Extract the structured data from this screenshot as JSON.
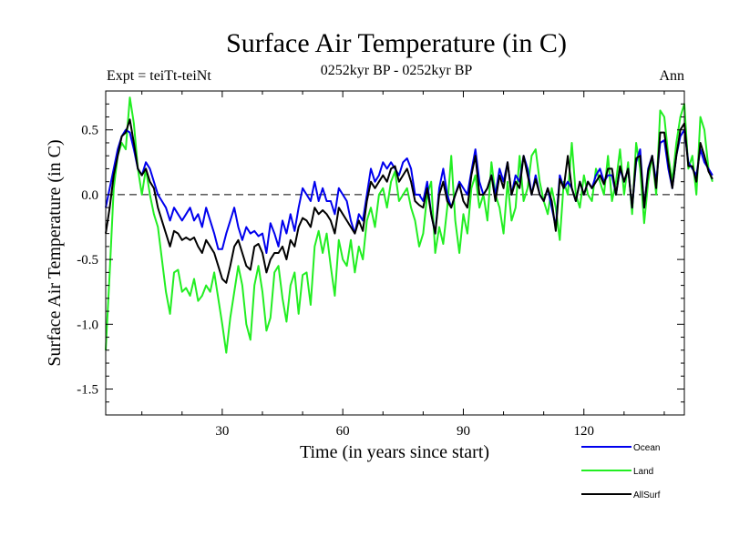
{
  "chart_data": {
    "type": "line",
    "title": "Surface Air Temperature (in C)",
    "expt_label": "Expt = teiTt-teiNt",
    "period_label": "0252kyr BP - 0252kyr BP",
    "season_label": "Ann",
    "xlabel": "Time (in years since start)",
    "ylabel": "Surface Air Temperature (in C)",
    "xlim": [
      1,
      145
    ],
    "ylim": [
      -1.7,
      0.8
    ],
    "x_ticks": [
      30,
      60,
      90,
      120
    ],
    "x_tick_labels": [
      "30",
      "60",
      "90",
      "120"
    ],
    "y_ticks": [
      -1.5,
      -1.0,
      -0.5,
      0.0,
      0.5
    ],
    "y_tick_labels": [
      "-1.5",
      "-1.0",
      "-0.5",
      "0.0",
      "0.5"
    ],
    "zero_line": true,
    "series": [
      {
        "name": "Land",
        "color": "#22ee22",
        "values": [
          -1.2,
          -0.6,
          0.05,
          0.3,
          0.4,
          0.35,
          0.75,
          0.55,
          0.2,
          0.0,
          0.2,
          0.0,
          -0.15,
          -0.25,
          -0.5,
          -0.75,
          -0.92,
          -0.6,
          -0.58,
          -0.75,
          -0.72,
          -0.78,
          -0.65,
          -0.82,
          -0.78,
          -0.7,
          -0.75,
          -0.6,
          -0.8,
          -1.0,
          -1.22,
          -0.95,
          -0.75,
          -0.55,
          -0.7,
          -1.0,
          -1.12,
          -0.7,
          -0.55,
          -0.75,
          -1.05,
          -0.95,
          -0.6,
          -0.55,
          -0.8,
          -0.98,
          -0.7,
          -0.6,
          -0.92,
          -0.62,
          -0.6,
          -0.85,
          -0.4,
          -0.28,
          -0.45,
          -0.3,
          -0.55,
          -0.78,
          -0.35,
          -0.5,
          -0.55,
          -0.35,
          -0.6,
          -0.4,
          -0.5,
          -0.2,
          -0.1,
          -0.25,
          0.0,
          0.05,
          -0.1,
          0.1,
          0.18,
          -0.05,
          0.0,
          0.05,
          -0.1,
          -0.2,
          -0.4,
          -0.3,
          0.0,
          0.1,
          -0.45,
          -0.25,
          -0.38,
          -0.1,
          0.3,
          -0.2,
          -0.45,
          -0.15,
          -0.3,
          0.05,
          0.15,
          -0.1,
          0.0,
          -0.2,
          0.25,
          0.0,
          -0.1,
          -0.3,
          0.1,
          -0.2,
          -0.1,
          0.3,
          -0.05,
          0.05,
          0.3,
          0.35,
          0.1,
          -0.05,
          -0.15,
          0.05,
          -0.1,
          -0.35,
          0.1,
          0.0,
          0.4,
          0.0,
          -0.1,
          0.15,
          0.0,
          -0.05,
          0.2,
          0.1,
          0.0,
          0.3,
          -0.05,
          0.1,
          0.35,
          0.0,
          0.25,
          -0.15,
          0.4,
          0.2,
          -0.22,
          0.1,
          0.3,
          0.0,
          0.65,
          0.6,
          0.3,
          0.1,
          0.4,
          0.6,
          0.7,
          0.2,
          0.3,
          0.0,
          0.6,
          0.5,
          0.2,
          0.1
        ]
      },
      {
        "name": "Ocean",
        "color": "#0000ee",
        "values": [
          -0.1,
          0.05,
          0.2,
          0.35,
          0.45,
          0.5,
          0.48,
          0.35,
          0.2,
          0.15,
          0.25,
          0.2,
          0.1,
          0.0,
          -0.05,
          -0.1,
          -0.2,
          -0.1,
          -0.15,
          -0.2,
          -0.15,
          -0.1,
          -0.2,
          -0.15,
          -0.25,
          -0.1,
          -0.2,
          -0.3,
          -0.42,
          -0.42,
          -0.3,
          -0.2,
          -0.1,
          -0.25,
          -0.35,
          -0.25,
          -0.3,
          -0.28,
          -0.32,
          -0.3,
          -0.45,
          -0.22,
          -0.3,
          -0.4,
          -0.2,
          -0.3,
          -0.15,
          -0.28,
          -0.1,
          0.05,
          0.0,
          -0.05,
          0.1,
          -0.05,
          0.05,
          -0.05,
          -0.05,
          -0.15,
          0.05,
          0.0,
          -0.05,
          -0.2,
          -0.3,
          -0.15,
          -0.2,
          0.0,
          0.2,
          0.1,
          0.15,
          0.25,
          0.2,
          0.25,
          0.2,
          0.15,
          0.25,
          0.28,
          0.2,
          0.0,
          0.0,
          -0.05,
          0.1,
          -0.15,
          -0.3,
          0.05,
          0.2,
          0.0,
          -0.1,
          0.0,
          0.1,
          0.05,
          0.0,
          0.18,
          0.35,
          0.1,
          0.0,
          0.05,
          0.15,
          0.0,
          0.2,
          0.1,
          0.25,
          0.0,
          0.15,
          0.1,
          0.3,
          0.2,
          0.0,
          0.15,
          0.0,
          -0.05,
          0.05,
          -0.1,
          -0.25,
          0.15,
          0.05,
          0.1,
          0.05,
          -0.05,
          0.1,
          0.0,
          0.1,
          0.05,
          0.15,
          0.2,
          0.1,
          0.15,
          0.15,
          0.0,
          0.2,
          0.1,
          0.2,
          -0.1,
          0.25,
          0.35,
          -0.1,
          0.2,
          0.3,
          0.1,
          0.4,
          0.42,
          0.2,
          0.05,
          0.3,
          0.45,
          0.5,
          0.25,
          0.2,
          0.15,
          0.35,
          0.25,
          0.2,
          0.15
        ]
      },
      {
        "name": "AllSurf",
        "color": "#000000",
        "values": [
          -0.3,
          -0.1,
          0.15,
          0.3,
          0.45,
          0.48,
          0.58,
          0.4,
          0.2,
          0.15,
          0.2,
          0.1,
          0.05,
          -0.1,
          -0.2,
          -0.3,
          -0.4,
          -0.28,
          -0.3,
          -0.35,
          -0.33,
          -0.35,
          -0.33,
          -0.4,
          -0.45,
          -0.35,
          -0.4,
          -0.45,
          -0.55,
          -0.65,
          -0.68,
          -0.55,
          -0.4,
          -0.35,
          -0.45,
          -0.55,
          -0.58,
          -0.4,
          -0.38,
          -0.45,
          -0.6,
          -0.5,
          -0.45,
          -0.45,
          -0.4,
          -0.5,
          -0.35,
          -0.4,
          -0.25,
          -0.18,
          -0.2,
          -0.25,
          -0.1,
          -0.15,
          -0.12,
          -0.15,
          -0.2,
          -0.3,
          -0.1,
          -0.15,
          -0.2,
          -0.25,
          -0.3,
          -0.2,
          -0.28,
          -0.05,
          0.1,
          0.05,
          0.1,
          0.15,
          0.1,
          0.2,
          0.22,
          0.1,
          0.15,
          0.2,
          0.1,
          -0.05,
          -0.08,
          -0.1,
          0.05,
          -0.15,
          -0.3,
          0.0,
          0.1,
          -0.05,
          -0.1,
          0.0,
          0.08,
          -0.05,
          -0.1,
          0.15,
          0.3,
          0.0,
          0.0,
          0.05,
          0.15,
          -0.05,
          0.15,
          0.05,
          0.25,
          0.0,
          0.1,
          0.05,
          0.3,
          0.15,
          0.0,
          0.12,
          0.0,
          -0.05,
          0.05,
          -0.05,
          -0.28,
          0.12,
          0.05,
          0.3,
          0.05,
          -0.05,
          0.1,
          0.0,
          0.1,
          0.05,
          0.1,
          0.15,
          0.08,
          0.2,
          0.2,
          0.0,
          0.22,
          0.1,
          0.2,
          -0.1,
          0.28,
          0.3,
          -0.1,
          0.18,
          0.3,
          0.05,
          0.48,
          0.48,
          0.25,
          0.05,
          0.3,
          0.5,
          0.55,
          0.22,
          0.22,
          0.1,
          0.4,
          0.3,
          0.18,
          0.12
        ]
      }
    ],
    "legend": [
      {
        "label": "Ocean",
        "color": "#0000ee"
      },
      {
        "label": "Land",
        "color": "#22ee22"
      },
      {
        "label": "AllSurf",
        "color": "#000000"
      }
    ]
  }
}
